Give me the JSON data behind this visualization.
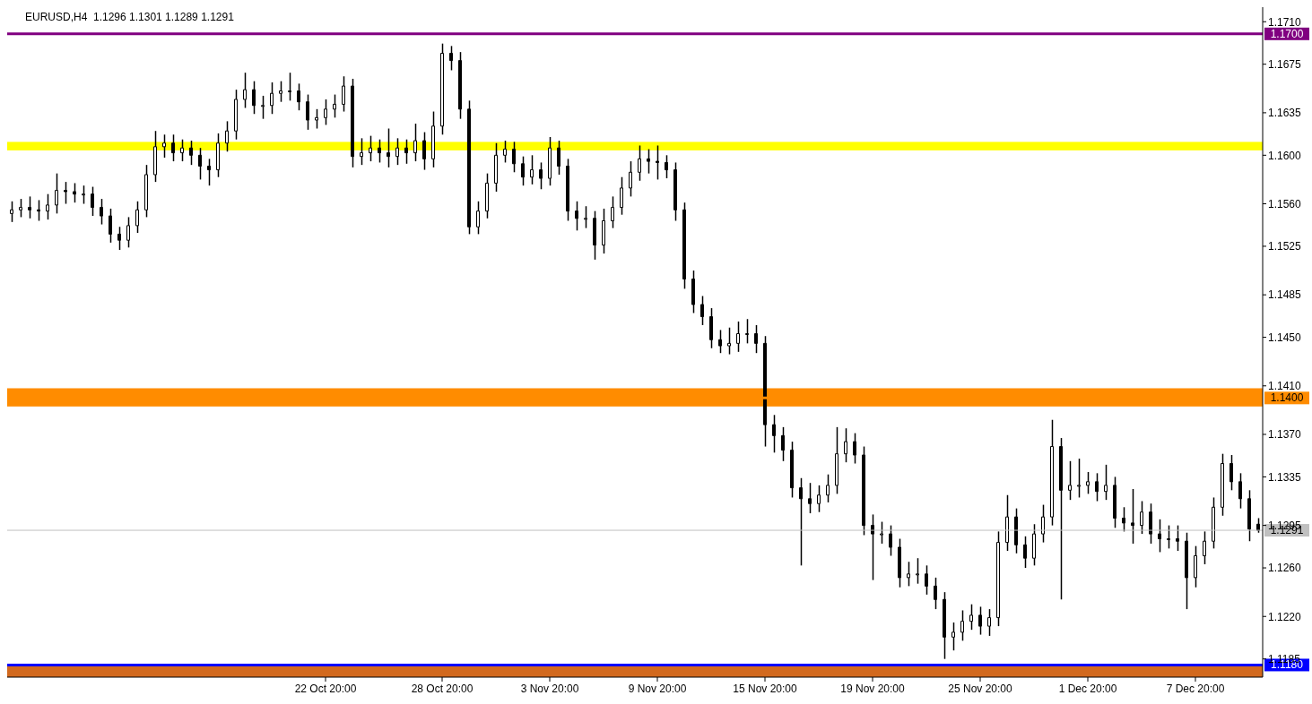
{
  "chart_data": {
    "type": "candlestick",
    "title": "EURUSD,H4  1.1296 1.1301 1.1289 1.1291",
    "color": "#000000",
    "categories": [
      null,
      null,
      null,
      null,
      null,
      null,
      null,
      null,
      null,
      null,
      null,
      null,
      null,
      null,
      null,
      null,
      null,
      null,
      null,
      null,
      null,
      null,
      null,
      null,
      null,
      null,
      null,
      null,
      null,
      null,
      null,
      null,
      null,
      null,
      null,
      "22 Oct 20:00",
      null,
      null,
      null,
      null,
      null,
      null,
      null,
      null,
      null,
      null,
      null,
      null,
      "28 Oct 20:00",
      null,
      null,
      null,
      null,
      null,
      null,
      null,
      null,
      null,
      null,
      null,
      "3 Nov 20:00",
      null,
      null,
      null,
      null,
      null,
      null,
      null,
      null,
      null,
      null,
      null,
      "9 Nov 20:00",
      null,
      null,
      null,
      null,
      null,
      null,
      null,
      null,
      null,
      null,
      null,
      "15 Nov 20:00",
      null,
      null,
      null,
      null,
      null,
      null,
      null,
      null,
      null,
      null,
      null,
      "19 Nov 20:00",
      null,
      null,
      null,
      null,
      null,
      null,
      null,
      null,
      null,
      null,
      null,
      "25 Nov 20:00",
      null,
      null,
      null,
      null,
      null,
      null,
      null,
      null,
      null,
      null,
      null,
      "1 Dec 20:00",
      null,
      null,
      null,
      null,
      null,
      null,
      null,
      null,
      null,
      null,
      null,
      "7 Dec 20:00",
      null,
      null,
      null,
      null,
      null,
      null,
      null
    ],
    "ohlc": [
      [
        1.1552,
        1.1562,
        1.1545,
        1.1555
      ],
      [
        1.1555,
        1.1564,
        1.1549,
        1.1557
      ],
      [
        1.1557,
        1.1566,
        1.1548,
        1.1555
      ],
      [
        1.1555,
        1.1563,
        1.1546,
        1.1554
      ],
      [
        1.1554,
        1.1568,
        1.1547,
        1.1559
      ],
      [
        1.1559,
        1.1585,
        1.1552,
        1.1571
      ],
      [
        1.1571,
        1.1578,
        1.156,
        1.157
      ],
      [
        1.157,
        1.1577,
        1.1561,
        1.1568
      ],
      [
        1.1568,
        1.1575,
        1.156,
        1.1568
      ],
      [
        1.1568,
        1.1574,
        1.155,
        1.1557
      ],
      [
        1.1557,
        1.1564,
        1.1543,
        1.155
      ],
      [
        1.155,
        1.1556,
        1.1528,
        1.1535
      ],
      [
        1.1535,
        1.1541,
        1.1522,
        1.153
      ],
      [
        1.153,
        1.1549,
        1.1524,
        1.1542
      ],
      [
        1.1542,
        1.1562,
        1.1536,
        1.1555
      ],
      [
        1.1555,
        1.1592,
        1.1549,
        1.1584
      ],
      [
        1.1584,
        1.162,
        1.1578,
        1.1607
      ],
      [
        1.1607,
        1.1617,
        1.1598,
        1.161
      ],
      [
        1.161,
        1.1617,
        1.1595,
        1.1602
      ],
      [
        1.1602,
        1.1613,
        1.1595,
        1.1606
      ],
      [
        1.1606,
        1.1612,
        1.1592,
        1.16
      ],
      [
        1.16,
        1.1606,
        1.158,
        1.1591
      ],
      [
        1.1591,
        1.1597,
        1.1575,
        1.1588
      ],
      [
        1.1588,
        1.1618,
        1.1582,
        1.161
      ],
      [
        1.161,
        1.1628,
        1.1603,
        1.162
      ],
      [
        1.162,
        1.1654,
        1.1613,
        1.1646
      ],
      [
        1.1646,
        1.1668,
        1.1639,
        1.1654
      ],
      [
        1.1654,
        1.1661,
        1.1634,
        1.1641
      ],
      [
        1.1641,
        1.1649,
        1.163,
        1.1641
      ],
      [
        1.1641,
        1.166,
        1.1634,
        1.1651
      ],
      [
        1.1651,
        1.1661,
        1.1644,
        1.1653
      ],
      [
        1.1653,
        1.1668,
        1.1645,
        1.1653
      ],
      [
        1.1653,
        1.1659,
        1.1637,
        1.1644
      ],
      [
        1.1644,
        1.165,
        1.1621,
        1.1629
      ],
      [
        1.1629,
        1.1638,
        1.1622,
        1.1631
      ],
      [
        1.1631,
        1.1646,
        1.1625,
        1.1638
      ],
      [
        1.1638,
        1.165,
        1.1631,
        1.1642
      ],
      [
        1.1642,
        1.1665,
        1.1636,
        1.1657
      ],
      [
        1.1657,
        1.1663,
        1.159,
        1.1599
      ],
      [
        1.1599,
        1.1614,
        1.1592,
        1.1602
      ],
      [
        1.1602,
        1.1616,
        1.1595,
        1.1606
      ],
      [
        1.1606,
        1.1613,
        1.1594,
        1.1602
      ],
      [
        1.1602,
        1.1622,
        1.159,
        1.1599
      ],
      [
        1.1599,
        1.1614,
        1.1592,
        1.1606
      ],
      [
        1.1606,
        1.1613,
        1.1593,
        1.1602
      ],
      [
        1.1602,
        1.1626,
        1.1595,
        1.1612
      ],
      [
        1.1612,
        1.1619,
        1.1588,
        1.1597
      ],
      [
        1.1597,
        1.1636,
        1.159,
        1.1624
      ],
      [
        1.1624,
        1.1692,
        1.1617,
        1.1684
      ],
      [
        1.1684,
        1.169,
        1.167,
        1.1678
      ],
      [
        1.1678,
        1.1685,
        1.163,
        1.1638
      ],
      [
        1.1638,
        1.1645,
        1.1535,
        1.1541
      ],
      [
        1.1541,
        1.1562,
        1.1535,
        1.1554
      ],
      [
        1.1554,
        1.1585,
        1.1548,
        1.1577
      ],
      [
        1.1577,
        1.161,
        1.157,
        1.16
      ],
      [
        1.16,
        1.1612,
        1.1594,
        1.1605
      ],
      [
        1.1605,
        1.1611,
        1.1586,
        1.1593
      ],
      [
        1.1593,
        1.1599,
        1.1575,
        1.1582
      ],
      [
        1.1582,
        1.16,
        1.1576,
        1.1588
      ],
      [
        1.1588,
        1.1594,
        1.1572,
        1.1581
      ],
      [
        1.1581,
        1.1615,
        1.1575,
        1.1606
      ],
      [
        1.1606,
        1.1612,
        1.1584,
        1.1591
      ],
      [
        1.1591,
        1.1597,
        1.1546,
        1.1554
      ],
      [
        1.1554,
        1.1562,
        1.1538,
        1.1548
      ],
      [
        1.1548,
        1.1558,
        1.154,
        1.1548
      ],
      [
        1.1548,
        1.1554,
        1.1514,
        1.1526
      ],
      [
        1.1526,
        1.1556,
        1.1519,
        1.1546
      ],
      [
        1.1546,
        1.1566,
        1.154,
        1.1557
      ],
      [
        1.1557,
        1.1582,
        1.1551,
        1.1573
      ],
      [
        1.1573,
        1.1595,
        1.1566,
        1.1586
      ],
      [
        1.1586,
        1.1608,
        1.1579,
        1.1597
      ],
      [
        1.1597,
        1.1605,
        1.1585,
        1.1595
      ],
      [
        1.1595,
        1.1608,
        1.158,
        1.1594
      ],
      [
        1.1594,
        1.16,
        1.1581,
        1.1588
      ],
      [
        1.1588,
        1.1594,
        1.1546,
        1.1555
      ],
      [
        1.1555,
        1.1561,
        1.149,
        1.1498
      ],
      [
        1.1498,
        1.1505,
        1.147,
        1.1477
      ],
      [
        1.1477,
        1.1484,
        1.146,
        1.1467
      ],
      [
        1.1467,
        1.1474,
        1.1441,
        1.1448
      ],
      [
        1.1448,
        1.1456,
        1.1437,
        1.1443
      ],
      [
        1.1443,
        1.1458,
        1.1436,
        1.1445
      ],
      [
        1.1445,
        1.1463,
        1.1438,
        1.1453
      ],
      [
        1.1453,
        1.1465,
        1.1445,
        1.1453
      ],
      [
        1.1453,
        1.146,
        1.1437,
        1.1445
      ],
      [
        1.1445,
        1.1451,
        1.136,
        1.1378
      ],
      [
        1.1378,
        1.1386,
        1.1355,
        1.1369
      ],
      [
        1.1369,
        1.1376,
        1.1348,
        1.1357
      ],
      [
        1.1357,
        1.1364,
        1.1318,
        1.1326
      ],
      [
        1.1326,
        1.1334,
        1.1262,
        1.1317
      ],
      [
        1.1317,
        1.133,
        1.1305,
        1.1313
      ],
      [
        1.1313,
        1.1328,
        1.1306,
        1.132
      ],
      [
        1.132,
        1.1337,
        1.1314,
        1.1328
      ],
      [
        1.1328,
        1.1376,
        1.1321,
        1.1354
      ],
      [
        1.1354,
        1.1375,
        1.1347,
        1.1364
      ],
      [
        1.1364,
        1.1371,
        1.1346,
        1.1353
      ],
      [
        1.1353,
        1.136,
        1.1287,
        1.1295
      ],
      [
        1.1295,
        1.1304,
        1.125,
        1.1288
      ],
      [
        1.1288,
        1.1298,
        1.128,
        1.1288
      ],
      [
        1.1288,
        1.1295,
        1.127,
        1.1277
      ],
      [
        1.1277,
        1.1284,
        1.1244,
        1.1252
      ],
      [
        1.1252,
        1.1265,
        1.1245,
        1.1255
      ],
      [
        1.1255,
        1.1268,
        1.1247,
        1.1255
      ],
      [
        1.1255,
        1.1262,
        1.1238,
        1.1245
      ],
      [
        1.1245,
        1.1252,
        1.1226,
        1.1234
      ],
      [
        1.1234,
        1.124,
        1.1185,
        1.1203
      ],
      [
        1.1203,
        1.1215,
        1.1192,
        1.1207
      ],
      [
        1.1207,
        1.1225,
        1.12,
        1.1216
      ],
      [
        1.1216,
        1.123,
        1.1209,
        1.1221
      ],
      [
        1.1221,
        1.1228,
        1.1205,
        1.1212
      ],
      [
        1.1212,
        1.1226,
        1.1204,
        1.1219
      ],
      [
        1.1219,
        1.129,
        1.1212,
        1.1281
      ],
      [
        1.1281,
        1.132,
        1.1274,
        1.1302
      ],
      [
        1.1302,
        1.1309,
        1.1272,
        1.1279
      ],
      [
        1.1279,
        1.1286,
        1.126,
        1.1268
      ],
      [
        1.1268,
        1.1296,
        1.1262,
        1.1288
      ],
      [
        1.1288,
        1.1312,
        1.1281,
        1.1302
      ],
      [
        1.1302,
        1.1382,
        1.1295,
        1.136
      ],
      [
        1.136,
        1.1367,
        1.1234,
        1.1324
      ],
      [
        1.1324,
        1.1348,
        1.1316,
        1.1328
      ],
      [
        1.1328,
        1.135,
        1.1318,
        1.1328
      ],
      [
        1.1328,
        1.1339,
        1.1321,
        1.1331
      ],
      [
        1.1331,
        1.1338,
        1.1315,
        1.1323
      ],
      [
        1.1323,
        1.1345,
        1.1316,
        1.1328
      ],
      [
        1.1328,
        1.1335,
        1.1293,
        1.1301
      ],
      [
        1.1301,
        1.131,
        1.129,
        1.1297
      ],
      [
        1.1297,
        1.1325,
        1.128,
        1.1295
      ],
      [
        1.1295,
        1.1315,
        1.1288,
        1.1306
      ],
      [
        1.1306,
        1.1313,
        1.128,
        1.1288
      ],
      [
        1.1288,
        1.13,
        1.1273,
        1.1284
      ],
      [
        1.1284,
        1.1295,
        1.1276,
        1.1284
      ],
      [
        1.1284,
        1.1295,
        1.1274,
        1.1282
      ],
      [
        1.1282,
        1.1289,
        1.1226,
        1.1252
      ],
      [
        1.1252,
        1.1278,
        1.1244,
        1.127
      ],
      [
        1.127,
        1.129,
        1.1263,
        1.1282
      ],
      [
        1.1282,
        1.1318,
        1.1276,
        1.131
      ],
      [
        1.131,
        1.1354,
        1.1303,
        1.1346
      ],
      [
        1.1346,
        1.1353,
        1.1324,
        1.1331
      ],
      [
        1.1331,
        1.1338,
        1.1309,
        1.1317
      ],
      [
        1.1317,
        1.1324,
        1.1282,
        1.1292
      ],
      [
        1.1296,
        1.1301,
        1.1289,
        1.1291
      ]
    ],
    "ylim": [
      1.117,
      1.1722
    ],
    "yticks": [
      {
        "value": 1.1185,
        "label": "1.1185"
      },
      {
        "value": 1.122,
        "label": "1.1220"
      },
      {
        "value": 1.126,
        "label": "1.1260"
      },
      {
        "value": 1.1295,
        "label": "1.1295"
      },
      {
        "value": 1.1335,
        "label": "1.1335"
      },
      {
        "value": 1.137,
        "label": "1.1370"
      },
      {
        "value": 1.141,
        "label": "1.1410"
      },
      {
        "value": 1.145,
        "label": "1.1450"
      },
      {
        "value": 1.1485,
        "label": "1.1485"
      },
      {
        "value": 1.1525,
        "label": "1.1525"
      },
      {
        "value": 1.156,
        "label": "1.1560"
      },
      {
        "value": 1.16,
        "label": "1.1600"
      },
      {
        "value": 1.1635,
        "label": "1.1635"
      },
      {
        "value": 1.1675,
        "label": "1.1675"
      },
      {
        "value": 1.171,
        "label": "1.1710"
      }
    ],
    "ref_lines": [
      {
        "axis": "y",
        "value": 1.17,
        "label": "1.1700",
        "color": "#800080"
      },
      {
        "axis": "y",
        "value": 1.14,
        "label": "1.1400",
        "color": "#ff8c00"
      },
      {
        "axis": "y",
        "value": 1.1291,
        "label": "1.1291",
        "color": "#c0c0c0"
      },
      {
        "axis": "y",
        "value": 1.118,
        "label": "1.1180",
        "color": "#0000ff"
      }
    ],
    "bands": [
      {
        "axis": "y",
        "from": 1.1604,
        "to": 1.1611,
        "color": "#ffff00"
      },
      {
        "axis": "y",
        "from": 1.1393,
        "to": 1.1408,
        "color": "#ff8c00"
      },
      {
        "axis": "y",
        "from": 1.117,
        "to": 1.118,
        "color": "#d2691e"
      }
    ],
    "grid": false,
    "legend": false
  }
}
